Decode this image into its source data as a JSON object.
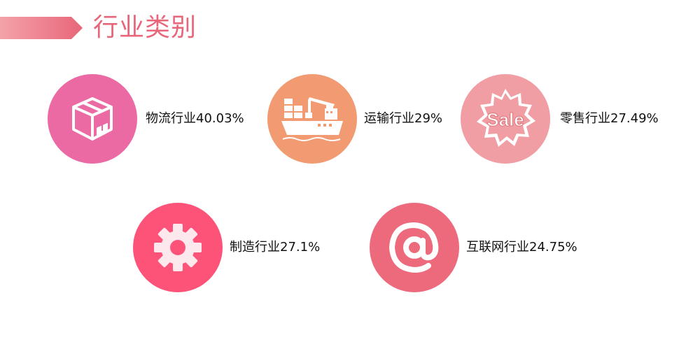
{
  "header": {
    "title": "行业类别"
  },
  "colors": {
    "accent": "#e8667a",
    "logistics": "#ec6aa3",
    "transport": "#f29b72",
    "retail": "#f09ea3",
    "manufacturing": "#fe5378",
    "internet": "#ec6a7c"
  },
  "industries": [
    {
      "label": "物流行业40.03%",
      "icon": "package-box-icon"
    },
    {
      "label": "运输行业29%",
      "icon": "cargo-ship-icon"
    },
    {
      "label": "零售行业27.49%",
      "icon": "sale-badge-icon",
      "badge_text": "Sale"
    },
    {
      "label": "制造行业27.1%",
      "icon": "gear-icon"
    },
    {
      "label": "互联网行业24.75%",
      "icon": "at-sign-icon"
    }
  ]
}
